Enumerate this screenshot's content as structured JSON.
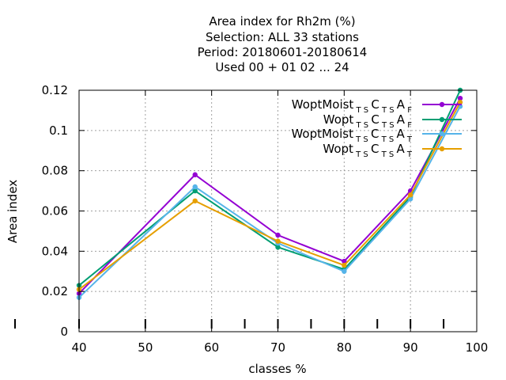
{
  "chart_data": {
    "type": "line",
    "title_lines": [
      "Area index  for Rh2m (%)",
      "Selection: ALL     33 stations",
      "Period: 20180601-20180614",
      "Used  00 + 01 02 ... 24"
    ],
    "xlabel": "classes %",
    "ylabel": "Area index",
    "xlim": [
      40,
      100
    ],
    "ylim": [
      0,
      0.12
    ],
    "xticks": [
      40,
      50,
      60,
      70,
      80,
      90,
      100
    ],
    "yticks": [
      0,
      0.02,
      0.04,
      0.06,
      0.08,
      0.1,
      0.12
    ],
    "xtick_labels": [
      "40",
      "50",
      "60",
      "70",
      "80",
      "90",
      "100"
    ],
    "ytick_labels": [
      "0",
      "0.02",
      "0.04",
      "0.06",
      "0.08",
      "0.1",
      "0.12"
    ],
    "grid": true,
    "legend_position": "top-right",
    "x": [
      40,
      57.5,
      70,
      80,
      90,
      97.5
    ],
    "series": [
      {
        "name": "WoptMoist",
        "sub1": "T S",
        "mid": "C",
        "sub2": "T S",
        "end": "A",
        "sub3": "F",
        "color": "#9400d3",
        "values": [
          0.019,
          0.078,
          0.048,
          0.035,
          0.07,
          0.116
        ]
      },
      {
        "name": "Wopt",
        "sub1": "T S",
        "mid": "C",
        "sub2": "T S",
        "end": "A",
        "sub3": "F",
        "color": "#009e73",
        "values": [
          0.023,
          0.07,
          0.042,
          0.031,
          0.067,
          0.12
        ]
      },
      {
        "name": "WoptMoist",
        "sub1": "T S",
        "mid": "C",
        "sub2": "T S",
        "end": "A",
        "sub3": "T",
        "color": "#56b4e9",
        "values": [
          0.017,
          0.072,
          0.044,
          0.03,
          0.066,
          0.112
        ]
      },
      {
        "name": "Wopt",
        "sub1": "T S",
        "mid": "C",
        "sub2": "T S",
        "end": "A",
        "sub3": "T",
        "color": "#e69f00",
        "values": [
          0.021,
          0.065,
          0.045,
          0.033,
          0.068,
          0.114
        ]
      }
    ],
    "bottom_marks_x": [
      40,
      50,
      60,
      65,
      70,
      75,
      80,
      85,
      90,
      95
    ]
  }
}
